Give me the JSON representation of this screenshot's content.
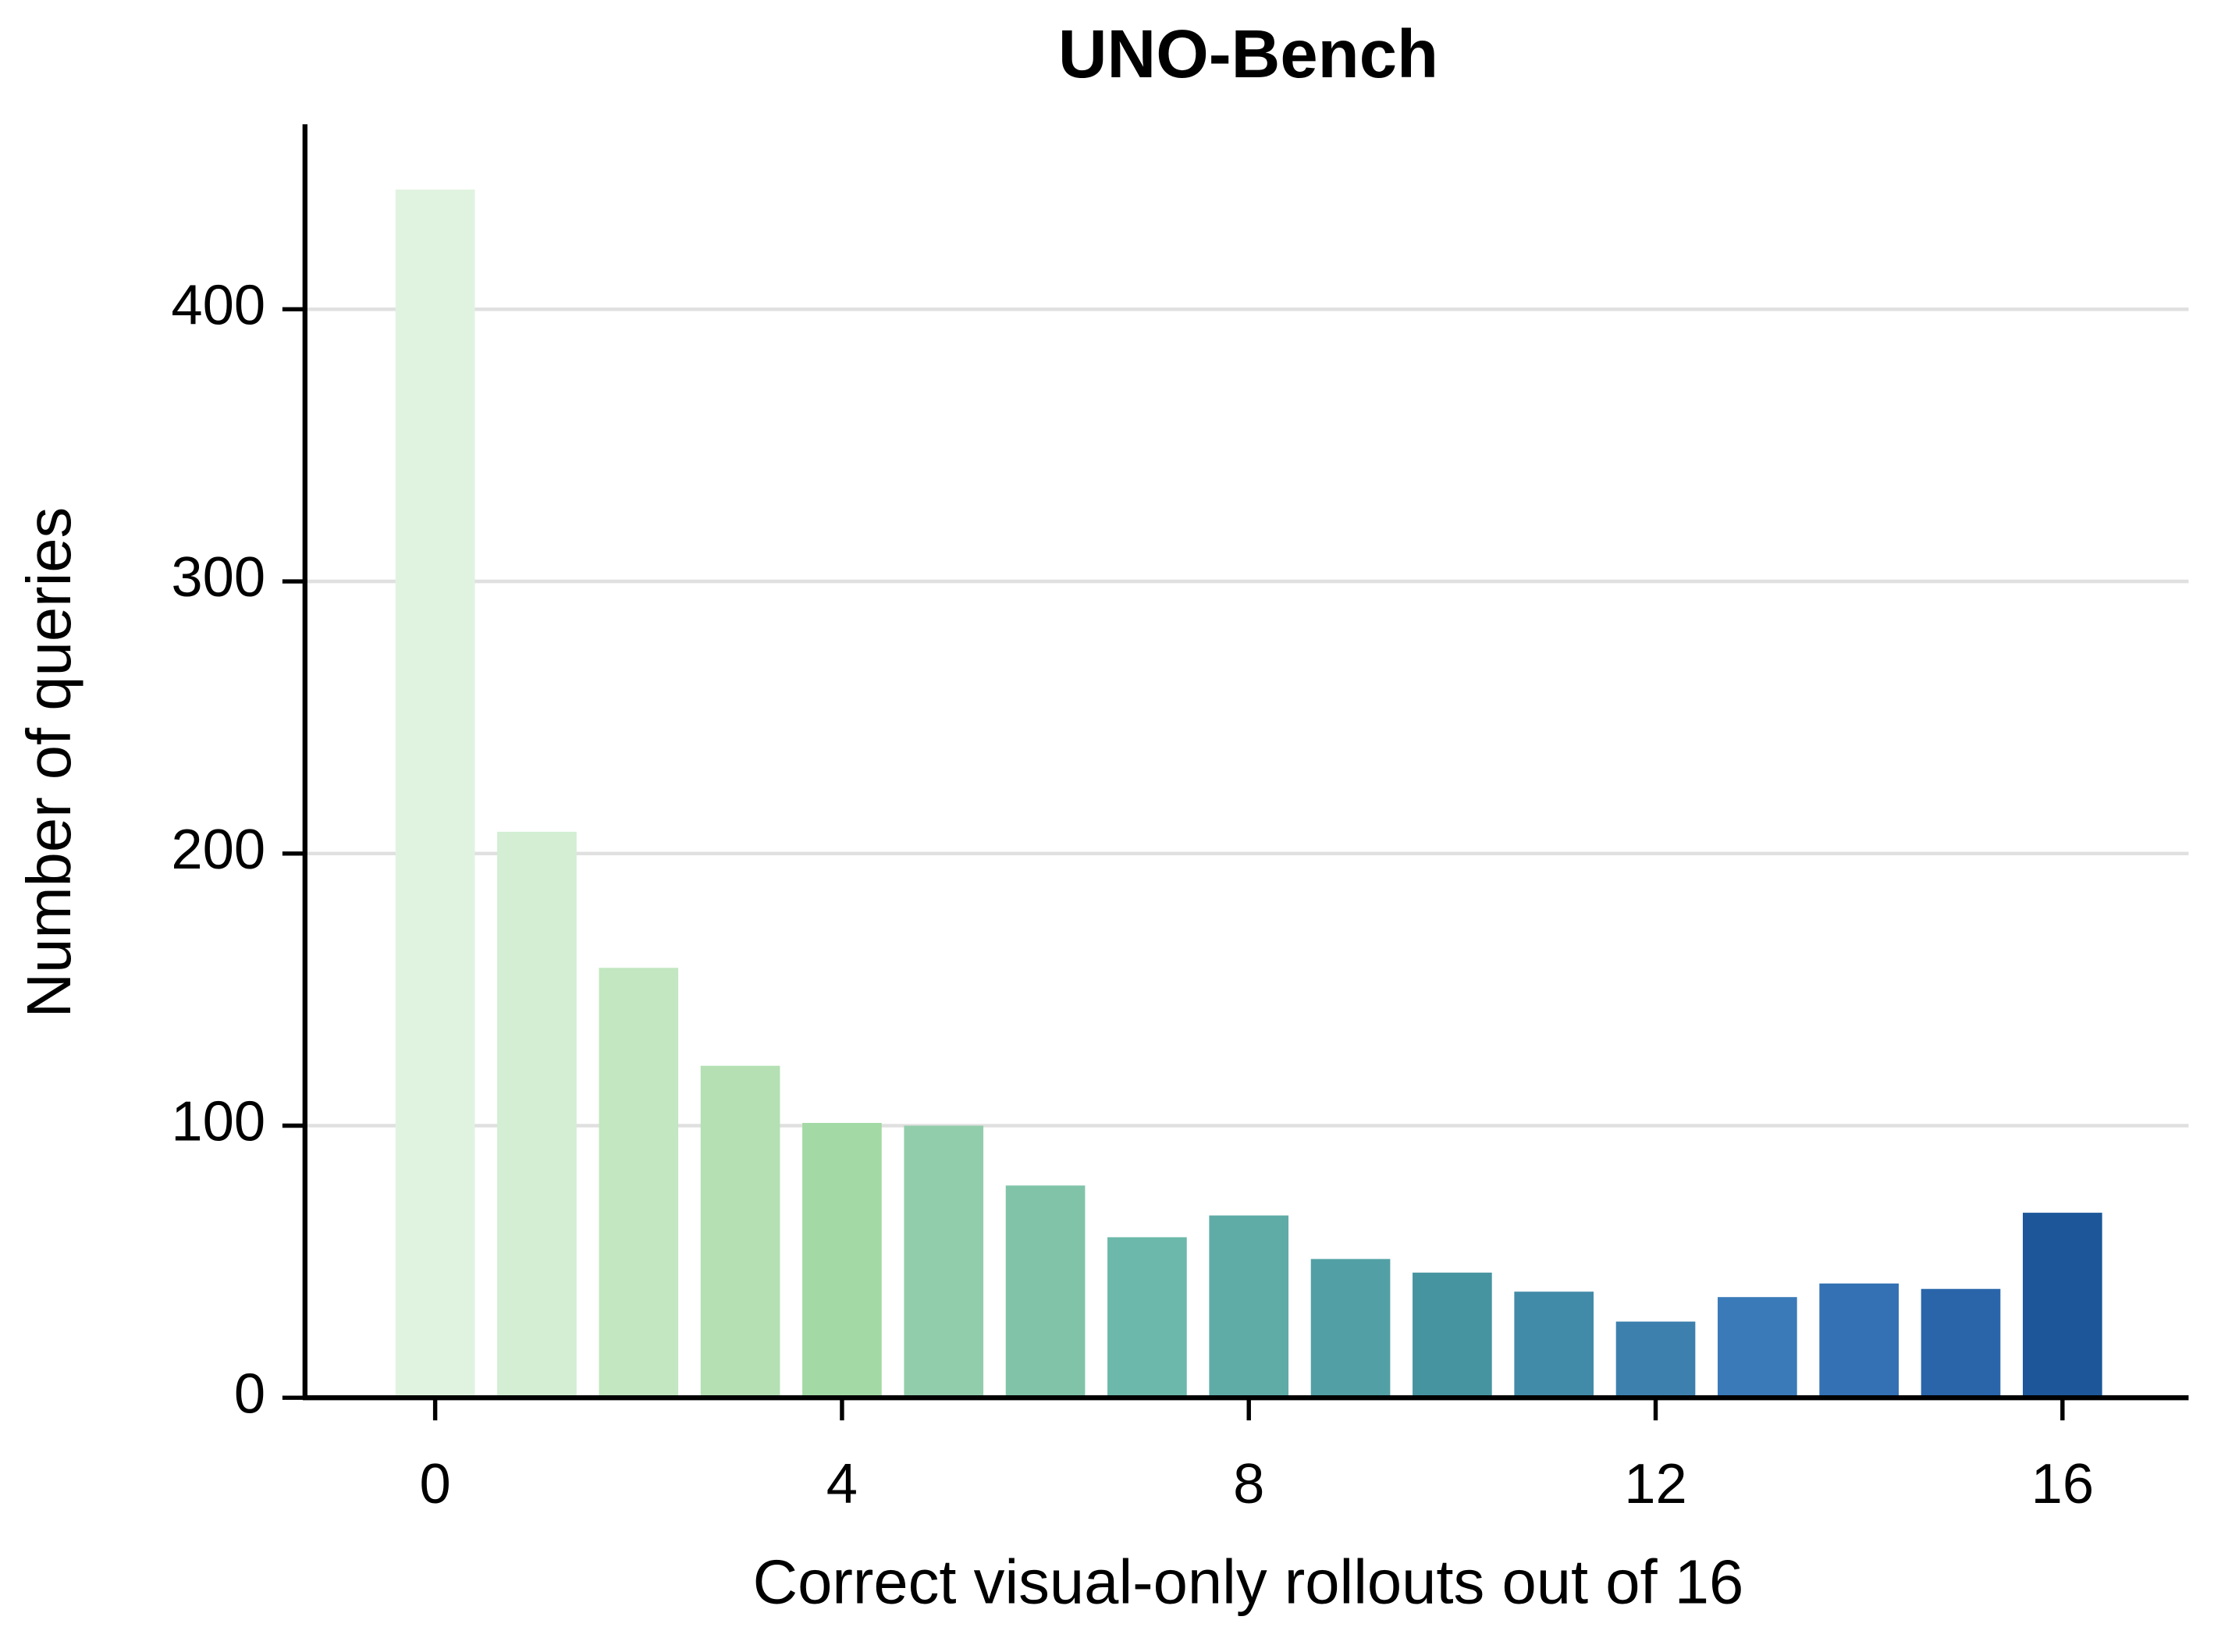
{
  "chart_data": {
    "type": "bar",
    "title": "UNO-Bench",
    "x_label": "Correct visual-only rollouts out of 16",
    "y_label": "Number of queries",
    "x": [
      0,
      1,
      2,
      3,
      4,
      5,
      6,
      7,
      8,
      9,
      10,
      11,
      12,
      13,
      14,
      15,
      16
    ],
    "values": [
      444,
      208,
      158,
      122,
      101,
      100,
      78,
      59,
      67,
      51,
      46,
      39,
      28,
      37,
      42,
      40,
      68
    ],
    "colors": [
      "#e0f3e0",
      "#d3eed3",
      "#c3e7c1",
      "#b4e0b4",
      "#a3d9a4",
      "#92cdab",
      "#80c3a9",
      "#6cb8aa",
      "#5faca7",
      "#52a0a5",
      "#4694a0",
      "#428ba8",
      "#3d80ae",
      "#3a7ab8",
      "#3371b4",
      "#2a65aa",
      "#1d579a"
    ],
    "xlim": [
      -1.28,
      17.24
    ],
    "xticks": [
      0,
      4,
      8,
      12,
      16
    ],
    "ylim": [
      0,
      468
    ],
    "yticks": [
      0,
      100,
      200,
      300,
      400
    ],
    "grid": true
  }
}
